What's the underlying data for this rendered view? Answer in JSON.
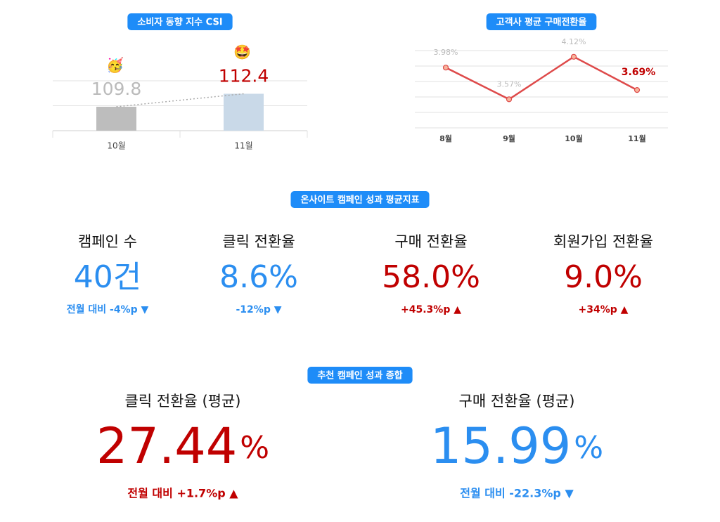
{
  "chart_data": [
    {
      "type": "bar",
      "title": "소비자 동향 지수 CSI",
      "categories": [
        "10월",
        "11월"
      ],
      "values": [
        109.8,
        112.4
      ],
      "colors": [
        "#bdbdbd",
        "#c9d9e8"
      ],
      "label_colors": [
        "#bbbbbb",
        "#c00000"
      ],
      "annotations": [
        "🥳",
        "🤩"
      ],
      "ylim": [
        105,
        115
      ],
      "yticks": [
        105,
        110,
        115
      ],
      "grid": true,
      "trend_line": true
    },
    {
      "type": "line",
      "title": "고객사 평균 구매전환율",
      "categories": [
        "8월",
        "9월",
        "10월",
        "11월"
      ],
      "values": [
        3.98,
        3.57,
        4.12,
        3.69
      ],
      "value_labels": [
        "3.98%",
        "3.57%",
        "4.12%",
        "3.69%"
      ],
      "color": "#de4a4a",
      "label_colors": [
        "#bbbbbb",
        "#bbbbbb",
        "#bbbbbb",
        "#c00000"
      ],
      "ylim": [
        3.2,
        4.2
      ],
      "yticks": [
        3.2,
        3.4,
        3.6,
        3.8,
        4,
        4.2
      ],
      "grid": true
    }
  ],
  "onsite": {
    "title": "온사이트 캠페인 성과 평균지표",
    "items": [
      {
        "label": "캠페인 수",
        "value": "40건",
        "change": "전월 대비 -4%p ▼",
        "color": "#2b8ef0"
      },
      {
        "label": "클릭 전환율",
        "value": "8.6%",
        "change": "-12%p ▼",
        "color": "#2b8ef0"
      },
      {
        "label": "구매 전환율",
        "value": "58.0%",
        "change": "+45.3%p ▲",
        "color": "#c00000"
      },
      {
        "label": "회원가입 전환율",
        "value": "9.0%",
        "change": "+34%p ▲",
        "color": "#c00000"
      }
    ]
  },
  "recommend": {
    "title": "추천 캠페인 성과 종합",
    "items": [
      {
        "label": "클릭 전환율 (평균)",
        "value": "27.44",
        "unit": "%",
        "change": "전월 대비 +1.7%p ▲",
        "color": "#c00000"
      },
      {
        "label": "구매 전환율 (평균)",
        "value": "15.99",
        "unit": "%",
        "change": "전월 대비 -22.3%p ▼",
        "color": "#2b8ef0"
      }
    ]
  }
}
